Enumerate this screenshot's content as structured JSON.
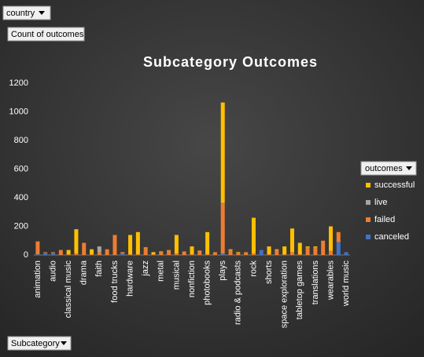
{
  "chart_data": {
    "type": "stacked_bar",
    "title": "Subcategory  Outcomes",
    "filter_label": "country",
    "value_label": "Count of outcomes",
    "axis_field": "Subcategory",
    "legend_title": "outcomes",
    "categories": [
      "animation",
      null,
      "audio",
      null,
      "classical music",
      null,
      "drama",
      null,
      "faith",
      null,
      "food trucks",
      null,
      "hardware",
      null,
      "jazz",
      null,
      "metal",
      null,
      "musical",
      null,
      "nonfiction",
      null,
      "photobooks",
      null,
      "plays",
      null,
      "radio & podcasts",
      null,
      "rock",
      null,
      "shorts",
      null,
      "space exploration",
      null,
      "tabletop games",
      null,
      "translations",
      null,
      "wearables",
      null,
      "world music"
    ],
    "series": [
      {
        "name": "canceled",
        "color": "#4472c4",
        "values": [
          5,
          15,
          15,
          0,
          0,
          0,
          0,
          0,
          0,
          0,
          0,
          10,
          0,
          0,
          0,
          0,
          0,
          0,
          0,
          0,
          0,
          0,
          0,
          0,
          10,
          0,
          0,
          0,
          0,
          35,
          0,
          0,
          0,
          0,
          0,
          0,
          0,
          0,
          0,
          90,
          20
        ]
      },
      {
        "name": "failed",
        "color": "#ed7d31",
        "values": [
          90,
          5,
          5,
          35,
          5,
          10,
          85,
          5,
          20,
          40,
          140,
          10,
          5,
          5,
          55,
          5,
          20,
          35,
          10,
          25,
          5,
          25,
          5,
          20,
          350,
          35,
          15,
          20,
          10,
          0,
          5,
          35,
          5,
          20,
          5,
          55,
          55,
          100,
          30,
          70,
          0
        ]
      },
      {
        "name": "live",
        "color": "#a5a5a5",
        "values": [
          0,
          0,
          0,
          0,
          0,
          0,
          0,
          0,
          40,
          0,
          0,
          0,
          0,
          0,
          0,
          0,
          0,
          0,
          0,
          0,
          0,
          0,
          0,
          0,
          5,
          0,
          0,
          0,
          0,
          0,
          0,
          0,
          0,
          0,
          0,
          0,
          0,
          0,
          0,
          0,
          0
        ]
      },
      {
        "name": "successful",
        "color": "#ffc000",
        "values": [
          0,
          0,
          0,
          0,
          30,
          170,
          0,
          35,
          0,
          0,
          0,
          0,
          135,
          155,
          0,
          15,
          5,
          0,
          130,
          0,
          55,
          5,
          155,
          0,
          700,
          5,
          5,
          0,
          250,
          0,
          55,
          5,
          55,
          165,
          80,
          5,
          5,
          0,
          170,
          0,
          0
        ]
      }
    ],
    "ylim": [
      0,
      1200
    ],
    "yticks": [
      0,
      200,
      400,
      600,
      800,
      1000,
      1200
    ],
    "grid": false
  }
}
